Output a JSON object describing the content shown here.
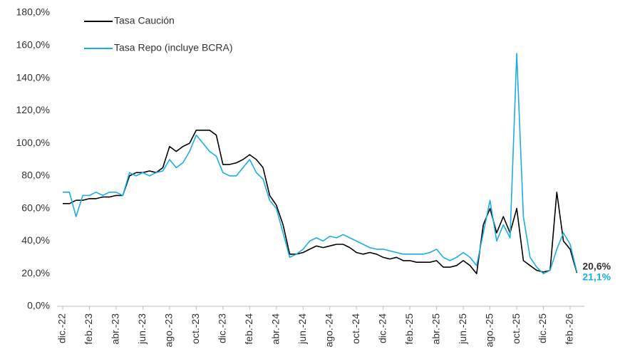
{
  "chart_data": {
    "type": "line",
    "categories": [
      "dic.-22",
      null,
      null,
      null,
      "feb.-23",
      null,
      null,
      null,
      "abr.-23",
      null,
      null,
      null,
      "jun.-23",
      null,
      null,
      null,
      "ago.-23",
      null,
      null,
      null,
      "oct.-23",
      null,
      null,
      null,
      "dic.-23",
      null,
      null,
      null,
      "feb.-24",
      null,
      null,
      null,
      "abr.-24",
      null,
      null,
      null,
      "jun.-24",
      null,
      null,
      null,
      "ago.-24",
      null,
      null,
      null,
      "oct.-24",
      null,
      null,
      null,
      "dic.-24",
      null,
      null,
      null,
      "feb.-25",
      null,
      null,
      null,
      "abr.-25",
      null,
      null,
      null,
      "jun.-25",
      null,
      null,
      null,
      "ago.-25",
      null,
      null,
      null,
      "oct.-25",
      null,
      null,
      null,
      "dic.-25",
      null,
      null,
      null,
      "feb.-26",
      null
    ],
    "series": [
      {
        "name": "Tasa Caución",
        "color": "#000000",
        "values": [
          63,
          63,
          65,
          65,
          66,
          66,
          67,
          67,
          68,
          68,
          80,
          82,
          82,
          83,
          82,
          85,
          98,
          95,
          98,
          100,
          108,
          108,
          108,
          105,
          87,
          87,
          88,
          90,
          93,
          90,
          85,
          68,
          62,
          50,
          32,
          32,
          33,
          35,
          37,
          36,
          37,
          38,
          38,
          36,
          33,
          32,
          33,
          32,
          30,
          29,
          30,
          28,
          28,
          27,
          27,
          27,
          28,
          24,
          24,
          25,
          28,
          25,
          20,
          50,
          60,
          45,
          55,
          45,
          60,
          28,
          25,
          22,
          21,
          22,
          70,
          40,
          35,
          20.6
        ],
        "value_labels": [
          null,
          null,
          null,
          null,
          null,
          null,
          null,
          null,
          null,
          null,
          null,
          null,
          null,
          null,
          null,
          null,
          null,
          null,
          null,
          null,
          null,
          null,
          null,
          null,
          null,
          null,
          null,
          null,
          null,
          null,
          null,
          null,
          null,
          null,
          null,
          null,
          null,
          null,
          null,
          null,
          null,
          null,
          null,
          null,
          null,
          null,
          null,
          null,
          null,
          null,
          null,
          null,
          null,
          null,
          null,
          null,
          null,
          null,
          null,
          null,
          null,
          null,
          null,
          null,
          null,
          null,
          null,
          null,
          null,
          null,
          null,
          null,
          null,
          null,
          null,
          null,
          null,
          "20,6%"
        ]
      },
      {
        "name": "Tasa Repo (incluye BCRA)",
        "color": "#1aaee5",
        "values": [
          70,
          70,
          55,
          68,
          68,
          70,
          68,
          70,
          70,
          68,
          82,
          80,
          82,
          80,
          82,
          83,
          90,
          85,
          88,
          95,
          105,
          100,
          95,
          92,
          82,
          80,
          80,
          85,
          90,
          82,
          78,
          65,
          60,
          45,
          30,
          32,
          35,
          40,
          42,
          40,
          43,
          42,
          44,
          42,
          40,
          38,
          36,
          35,
          35,
          34,
          33,
          32,
          32,
          32,
          32,
          33,
          35,
          30,
          28,
          30,
          33,
          30,
          25,
          45,
          65,
          40,
          50,
          42,
          155,
          55,
          30,
          24,
          20,
          22,
          35,
          45,
          38,
          21.1
        ],
        "value_labels": [
          null,
          null,
          null,
          null,
          null,
          null,
          null,
          null,
          null,
          null,
          null,
          null,
          null,
          null,
          null,
          null,
          null,
          null,
          null,
          null,
          null,
          null,
          null,
          null,
          null,
          null,
          null,
          null,
          null,
          null,
          null,
          null,
          null,
          null,
          null,
          null,
          null,
          null,
          null,
          null,
          null,
          null,
          null,
          null,
          null,
          null,
          null,
          null,
          null,
          null,
          null,
          null,
          null,
          null,
          null,
          null,
          null,
          null,
          null,
          null,
          null,
          null,
          null,
          null,
          null,
          null,
          null,
          null,
          null,
          null,
          null,
          null,
          null,
          null,
          null,
          null,
          null,
          "21,1%"
        ]
      }
    ],
    "ylim": [
      0,
      180
    ],
    "yticks": [
      {
        "value": 0,
        "label": "0,0%"
      },
      {
        "value": 20,
        "label": "20,0%"
      },
      {
        "value": 40,
        "label": "40,0%"
      },
      {
        "value": 60,
        "label": "60,0%"
      },
      {
        "value": 80,
        "label": "80,0%"
      },
      {
        "value": 100,
        "label": "100,0%"
      },
      {
        "value": 120,
        "label": "120,0%"
      },
      {
        "value": 140,
        "label": "140,0%"
      },
      {
        "value": 160,
        "label": "160,0%"
      },
      {
        "value": 180,
        "label": "180,0%"
      }
    ],
    "grid": false,
    "legend": "top-left"
  }
}
